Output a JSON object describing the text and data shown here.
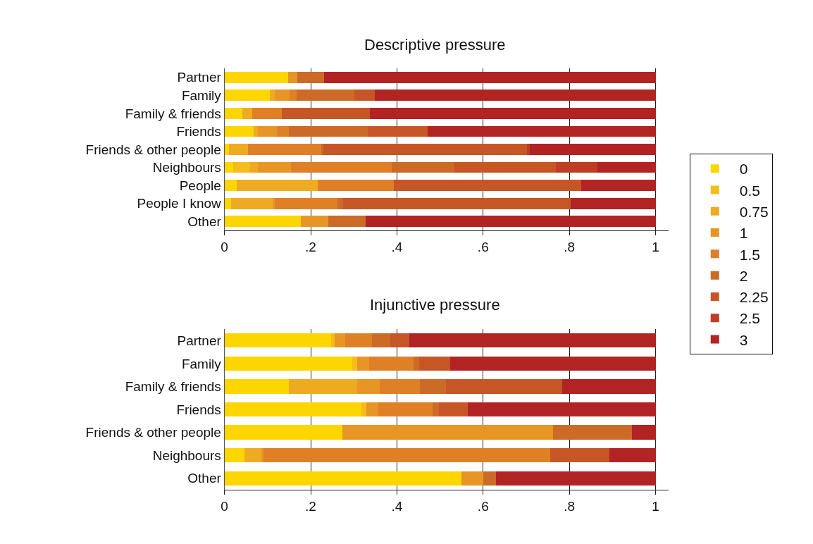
{
  "chart_data": [
    {
      "type": "bar",
      "orientation": "horizontal",
      "stacked": true,
      "title": "Descriptive pressure",
      "legend": "right",
      "grid": "x",
      "categories": [
        "Partner",
        "Family",
        "Family & friends",
        "Friends",
        "Friends & other people",
        "Neighbours",
        "People",
        "People I know",
        "Other"
      ],
      "xlim": [
        0,
        1.03
      ],
      "xticks": [
        0,
        {
          "value": 0.2,
          "label": ".2"
        },
        {
          "value": 0.4,
          "label": ".4"
        },
        {
          "value": 0.6,
          "label": ".6"
        },
        {
          "value": 0.8,
          "label": ".8"
        },
        1
      ],
      "series": [
        {
          "name": "0",
          "color": "#fdd600",
          "values": [
            0.147,
            0.106,
            0.042,
            0.068,
            0.011,
            0.021,
            0.028,
            0.016,
            0.177
          ]
        },
        {
          "name": "0.5",
          "color": "#f5bc1d",
          "values": [
            0,
            0,
            0,
            0,
            0,
            0.039,
            0,
            0,
            0
          ]
        },
        {
          "name": "0.75",
          "color": "#eeab22",
          "values": [
            0,
            0.011,
            0.022,
            0.01,
            0.043,
            0.018,
            0.189,
            0.096,
            0
          ]
        },
        {
          "name": "1",
          "color": "#e79626",
          "values": [
            0.022,
            0.034,
            0,
            0.043,
            0,
            0.077,
            0,
            0.005,
            0.064
          ]
        },
        {
          "name": "1.5",
          "color": "#df8026",
          "values": [
            0,
            0.017,
            0.069,
            0.029,
            0.171,
            0.233,
            0.176,
            0.145,
            0
          ]
        },
        {
          "name": "2",
          "color": "#cc6b27",
          "values": [
            0.062,
            0.133,
            0,
            0.182,
            0.005,
            0.145,
            0,
            0.013,
            0.086
          ]
        },
        {
          "name": "2.25",
          "color": "#c75626",
          "values": [
            0,
            0.048,
            0.204,
            0.14,
            0.472,
            0.236,
            0.434,
            0.528,
            0
          ]
        },
        {
          "name": "2.5",
          "color": "#bd3e25",
          "values": [
            0,
            0,
            0,
            0,
            0.006,
            0.096,
            0,
            0,
            0
          ]
        },
        {
          "name": "3",
          "color": "#b22324",
          "values": [
            0.769,
            0.651,
            0.663,
            0.528,
            0.292,
            0.135,
            0.173,
            0.197,
            0.673
          ]
        }
      ]
    },
    {
      "type": "bar",
      "orientation": "horizontal",
      "stacked": true,
      "title": "Injunctive pressure",
      "grid": "x",
      "categories": [
        "Partner",
        "Family",
        "Family & friends",
        "Friends",
        "Friends & other people",
        "Neighbours",
        "Other"
      ],
      "xlim": [
        0,
        1.03
      ],
      "xticks": [
        0,
        {
          "value": 0.2,
          "label": ".2"
        },
        {
          "value": 0.4,
          "label": ".4"
        },
        {
          "value": 0.6,
          "label": ".6"
        },
        {
          "value": 0.8,
          "label": ".8"
        },
        1
      ],
      "series": [
        {
          "name": "0",
          "color": "#fdd600",
          "values": [
            0.247,
            0.296,
            0.15,
            0.318,
            0.273,
            0.047,
            0.55
          ]
        },
        {
          "name": "0.5",
          "color": "#f5bc1d",
          "values": [
            0.009,
            0.012,
            0,
            0.011,
            0,
            0,
            0
          ]
        },
        {
          "name": "0.75",
          "color": "#eeab22",
          "values": [
            0,
            0,
            0.158,
            0,
            0,
            0.039,
            0
          ]
        },
        {
          "name": "1",
          "color": "#e79626",
          "values": [
            0.024,
            0.027,
            0.052,
            0.028,
            0.489,
            0.005,
            0.051
          ]
        },
        {
          "name": "1.5",
          "color": "#df8026",
          "values": [
            0.062,
            0.103,
            0.093,
            0.125,
            0,
            0.665,
            0
          ]
        },
        {
          "name": "2",
          "color": "#cc6b27",
          "values": [
            0.042,
            0.013,
            0.06,
            0.015,
            0.184,
            0,
            0.028
          ]
        },
        {
          "name": "2.25",
          "color": "#c75626",
          "values": [
            0.044,
            0.073,
            0.27,
            0.067,
            0,
            0.137,
            0
          ]
        },
        {
          "name": "2.5",
          "color": "#bd3e25",
          "values": [
            0,
            0,
            0,
            0,
            0,
            0,
            0
          ]
        },
        {
          "name": "3",
          "color": "#b22324",
          "values": [
            0.572,
            0.476,
            0.217,
            0.436,
            0.054,
            0.107,
            0.371
          ]
        }
      ]
    }
  ]
}
